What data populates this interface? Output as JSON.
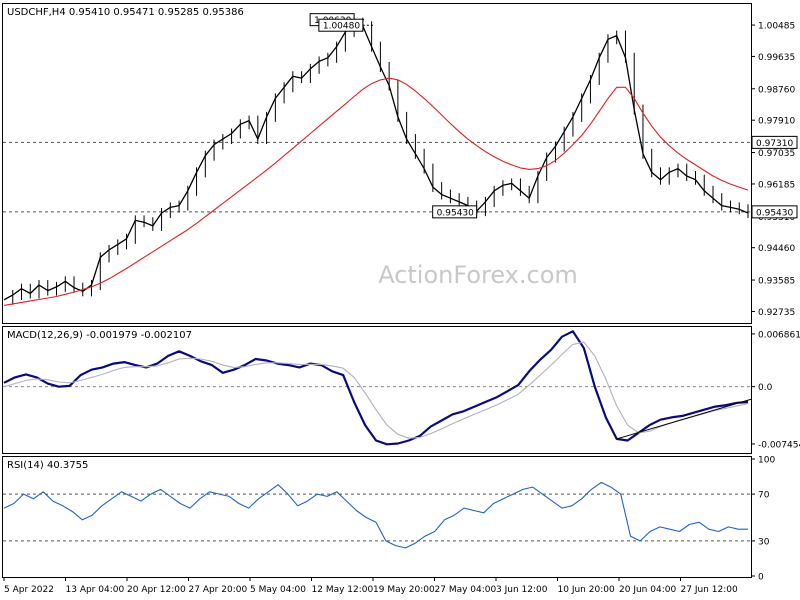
{
  "chart_data": [
    {
      "type": "line",
      "title": "USDCHF,H4  0.95410 0.95471 0.95285 0.95386",
      "watermark": "ActionForex.com",
      "yticks": [
        "1.00485",
        "0.99635",
        "0.98760",
        "0.97910",
        "0.97035",
        "0.96185",
        "0.95310",
        "0.94460",
        "0.93585",
        "0.92735"
      ],
      "ylim": [
        0.9245,
        1.01
      ],
      "levels": [
        {
          "label": "0.97310",
          "value": 0.9731,
          "boxed": true
        },
        {
          "label": "0.95430",
          "value": 0.9543,
          "boxed": true
        }
      ],
      "annotations": [
        {
          "label": "1.00630",
          "value": 1.0063
        },
        {
          "label": "1.00480",
          "value": 1.0048
        },
        {
          "label": "0.95430",
          "value": 0.9543
        }
      ],
      "series": [
        {
          "role": "price",
          "color": "#000000",
          "values": [
            0.9305,
            0.9318,
            0.9335,
            0.9322,
            0.9345,
            0.933,
            0.934,
            0.9355,
            0.9338,
            0.9328,
            0.9345,
            0.942,
            0.944,
            0.9455,
            0.947,
            0.952,
            0.9515,
            0.9505,
            0.954,
            0.9555,
            0.956,
            0.96,
            0.965,
            0.9695,
            0.9725,
            0.974,
            0.9755,
            0.978,
            0.979,
            0.974,
            0.98,
            0.985,
            0.988,
            0.991,
            0.9905,
            0.993,
            0.995,
            0.996,
            0.999,
            1.003,
            1.0055,
            1.0045,
            0.999,
            0.9935,
            0.9885,
            0.98,
            0.974,
            0.97,
            0.966,
            0.961,
            0.959,
            0.958,
            0.957,
            0.956,
            0.9545,
            0.957,
            0.96,
            0.9615,
            0.962,
            0.96,
            0.958,
            0.964,
            0.969,
            0.972,
            0.976,
            0.98,
            0.985,
            0.99,
            0.996,
            1.001,
            1.002,
            0.996,
            0.982,
            0.97,
            0.965,
            0.963,
            0.965,
            0.966,
            0.964,
            0.963,
            0.96,
            0.958,
            0.956,
            0.9555,
            0.955,
            0.954
          ]
        },
        {
          "role": "moving-average",
          "color": "#e02020",
          "values": [
            0.929,
            0.9294,
            0.9298,
            0.9302,
            0.9306,
            0.931,
            0.9314,
            0.932,
            0.9326,
            0.9333,
            0.934,
            0.935,
            0.9362,
            0.9376,
            0.939,
            0.9405,
            0.942,
            0.9435,
            0.945,
            0.9465,
            0.948,
            0.9495,
            0.9512,
            0.953,
            0.9548,
            0.9566,
            0.9584,
            0.9602,
            0.962,
            0.9638,
            0.9656,
            0.9675,
            0.9695,
            0.9715,
            0.9735,
            0.9755,
            0.9775,
            0.9795,
            0.9815,
            0.9835,
            0.9855,
            0.9875,
            0.989,
            0.99,
            0.9905,
            0.99,
            0.9888,
            0.987,
            0.985,
            0.9828,
            0.9805,
            0.9782,
            0.976,
            0.974,
            0.9722,
            0.9706,
            0.9692,
            0.968,
            0.967,
            0.9662,
            0.9658,
            0.966,
            0.9668,
            0.9682,
            0.9702,
            0.9725,
            0.975,
            0.978,
            0.9815,
            0.985,
            0.988,
            0.988,
            0.985,
            0.981,
            0.9775,
            0.9745,
            0.9722,
            0.9702,
            0.9685,
            0.967,
            0.9655,
            0.964,
            0.9628,
            0.9618,
            0.961,
            0.9602
          ]
        }
      ]
    },
    {
      "type": "line",
      "title": "MACD(12,26,9) -0.001979 -0.002107",
      "yticks": [
        "0.006861",
        "0.0",
        "-0.007454"
      ],
      "ylim": [
        -0.0085,
        0.0075
      ],
      "zero_value": 0.0,
      "series": [
        {
          "role": "macd",
          "color": "#0a0a80",
          "values": [
            0.0005,
            0.0012,
            0.0016,
            0.0012,
            0.0004,
            0.0,
            0.0001,
            0.0015,
            0.0022,
            0.0025,
            0.003,
            0.0032,
            0.0028,
            0.0025,
            0.003,
            0.004,
            0.0046,
            0.004,
            0.0033,
            0.0028,
            0.0018,
            0.0022,
            0.0028,
            0.0036,
            0.0034,
            0.003,
            0.0028,
            0.0025,
            0.003,
            0.0028,
            0.002,
            0.0015,
            -0.002,
            -0.005,
            -0.007,
            -0.0075,
            -0.0074,
            -0.007,
            -0.0064,
            -0.0052,
            -0.0044,
            -0.0036,
            -0.0032,
            -0.0026,
            -0.002,
            -0.0014,
            -0.0006,
            0.0002,
            0.002,
            0.0035,
            0.0048,
            0.0065,
            0.0072,
            0.005,
            0.0,
            -0.004,
            -0.0068,
            -0.007,
            -0.006,
            -0.005,
            -0.0043,
            -0.004,
            -0.0038,
            -0.0034,
            -0.003,
            -0.0026,
            -0.0024,
            -0.0021,
            -0.002
          ]
        },
        {
          "role": "signal",
          "color": "#b0b0c0",
          "values": [
            0.0,
            0.0004,
            0.0008,
            0.001,
            0.0009,
            0.0006,
            0.0005,
            0.0008,
            0.0012,
            0.0016,
            0.0021,
            0.0025,
            0.0026,
            0.0026,
            0.0027,
            0.0031,
            0.0036,
            0.0037,
            0.0036,
            0.0033,
            0.0028,
            0.0025,
            0.0026,
            0.0029,
            0.0031,
            0.0031,
            0.003,
            0.0029,
            0.0029,
            0.0029,
            0.0027,
            0.0024,
            0.0012,
            -0.0008,
            -0.003,
            -0.005,
            -0.0062,
            -0.0067,
            -0.0066,
            -0.0061,
            -0.0055,
            -0.0048,
            -0.0042,
            -0.0036,
            -0.003,
            -0.0024,
            -0.0017,
            -0.001,
            0.0002,
            0.0015,
            0.0028,
            0.0042,
            0.0055,
            0.0058,
            0.004,
            0.001,
            -0.0025,
            -0.005,
            -0.006,
            -0.0058,
            -0.0052,
            -0.0047,
            -0.0043,
            -0.0039,
            -0.0035,
            -0.0031,
            -0.0028,
            -0.0025,
            -0.0022
          ]
        }
      ]
    },
    {
      "type": "line",
      "title": "RSI(14) 40.3755",
      "yticks": [
        "100",
        "70",
        "30",
        "0"
      ],
      "ylim": [
        0,
        100
      ],
      "levels": [
        {
          "value": 70
        },
        {
          "value": 30
        }
      ],
      "series": [
        {
          "role": "rsi",
          "color": "#1e64c8",
          "values": [
            58,
            62,
            70,
            66,
            72,
            64,
            60,
            55,
            48,
            52,
            60,
            66,
            72,
            68,
            64,
            70,
            74,
            68,
            62,
            58,
            66,
            72,
            70,
            68,
            62,
            58,
            66,
            72,
            78,
            70,
            60,
            64,
            70,
            68,
            72,
            64,
            56,
            50,
            46,
            30,
            26,
            24,
            28,
            34,
            38,
            48,
            52,
            58,
            56,
            54,
            62,
            66,
            70,
            74,
            76,
            70,
            64,
            58,
            60,
            66,
            74,
            80,
            76,
            70,
            34,
            30,
            38,
            42,
            40,
            38,
            44,
            46,
            40,
            38,
            42,
            40,
            40
          ]
        }
      ]
    }
  ],
  "x_axis": {
    "ticks": [
      "5 Apr 2022",
      "13 Apr 04:00",
      "20 Apr 12:00",
      "27 Apr 20:00",
      "5 May 04:00",
      "12 May 12:00",
      "19 May 20:00",
      "27 May 04:00",
      "3 Jun 12:00",
      "10 Jun 20:00",
      "20 Jun 04:00",
      "27 Jun 12:00"
    ]
  }
}
